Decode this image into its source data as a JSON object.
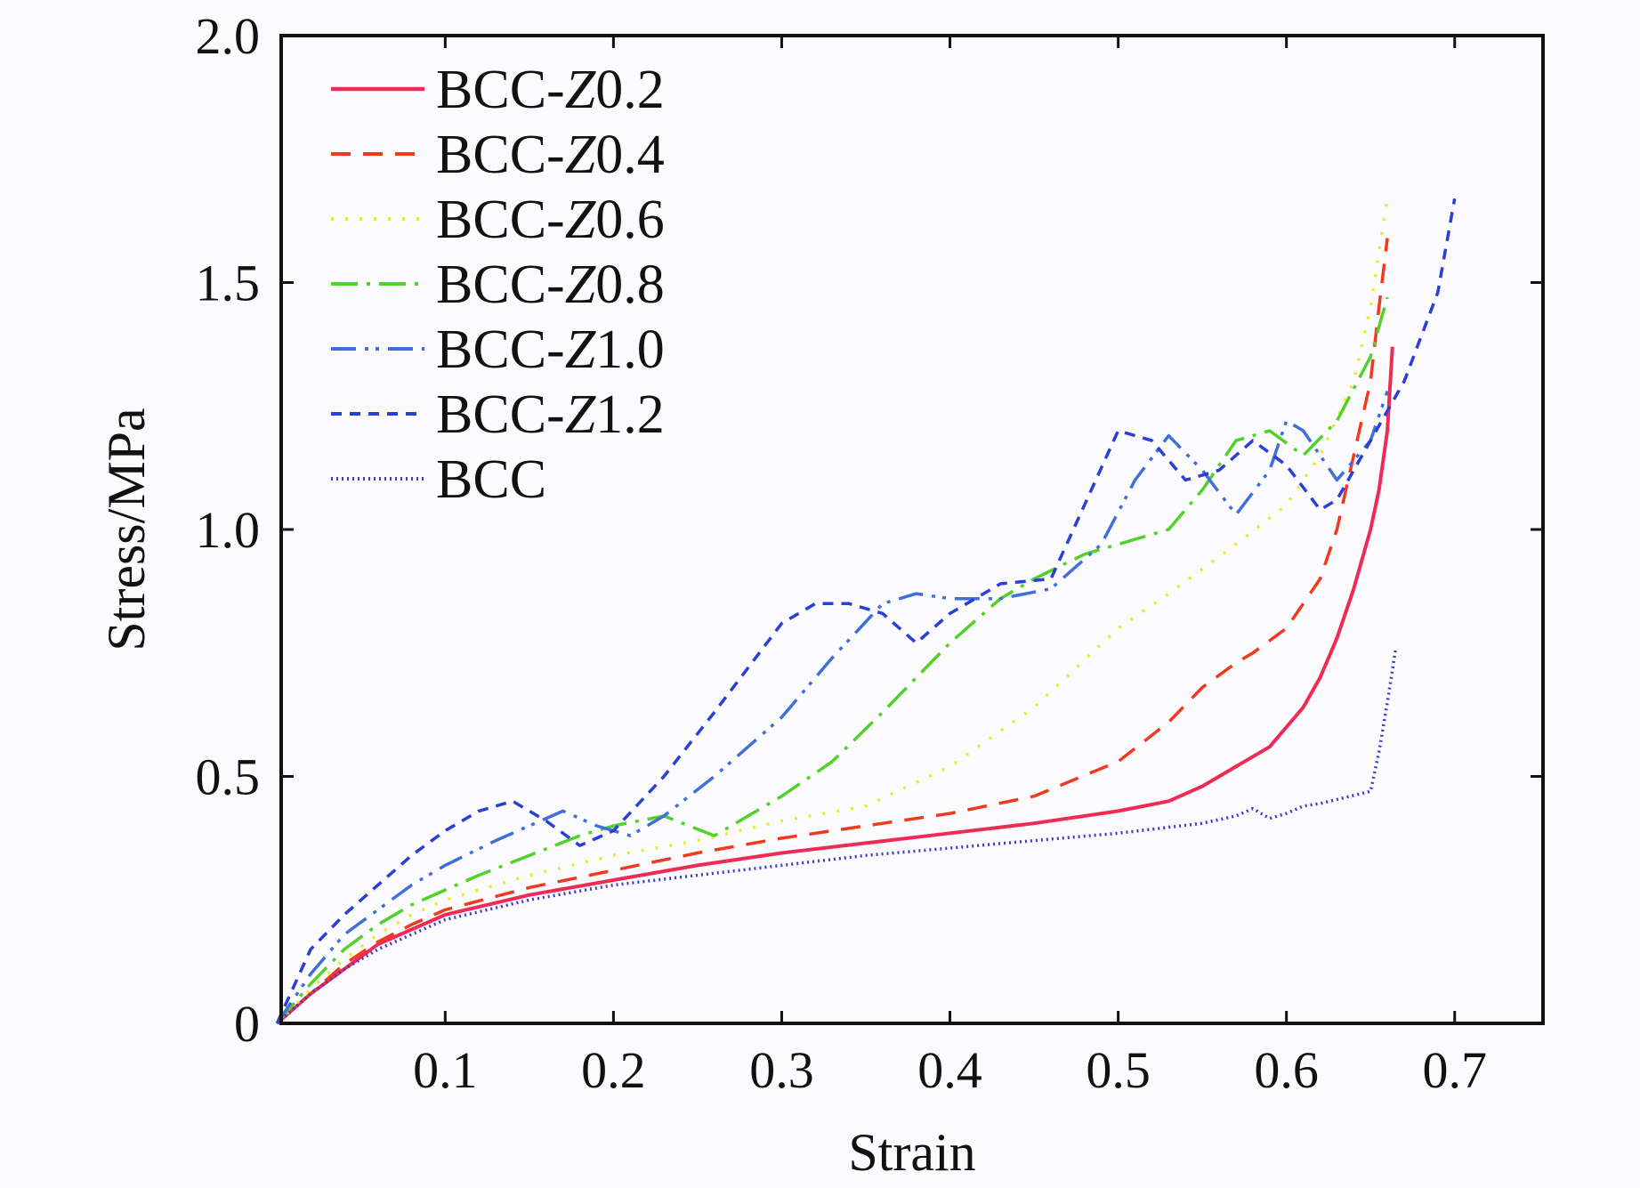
{
  "chart_data": {
    "type": "line",
    "title": "",
    "xlabel": "Strain",
    "ylabel": "Stress/MPa",
    "xlim": [
      0,
      0.75
    ],
    "ylim": [
      0,
      2.0
    ],
    "xticks": [
      0.1,
      0.2,
      0.3,
      0.4,
      0.5,
      0.6,
      0.7
    ],
    "xtick_labels": [
      "0.1",
      "0.2",
      "0.3",
      "0.4",
      "0.5",
      "0.6",
      "0.7"
    ],
    "yticks": [
      0,
      0.5,
      1.0,
      1.5,
      2.0
    ],
    "ytick_labels": [
      "0",
      "0.5",
      "1.0",
      "1.5",
      "2.0"
    ],
    "grid": false,
    "legend_position": "top-left",
    "series": [
      {
        "name": "BCC-Z0.2",
        "prefix": "BCC-",
        "italic": "Z",
        "suffix": "0.2",
        "color": "#ef2b55",
        "dash": "",
        "x": [
          0,
          0.02,
          0.04,
          0.06,
          0.08,
          0.1,
          0.15,
          0.2,
          0.25,
          0.3,
          0.35,
          0.4,
          0.45,
          0.5,
          0.53,
          0.55,
          0.57,
          0.59,
          0.6,
          0.61,
          0.62,
          0.63,
          0.64,
          0.65,
          0.655,
          0.66,
          0.663
        ],
        "y": [
          0,
          0.06,
          0.11,
          0.16,
          0.19,
          0.22,
          0.26,
          0.29,
          0.32,
          0.345,
          0.365,
          0.385,
          0.405,
          0.43,
          0.45,
          0.48,
          0.52,
          0.56,
          0.6,
          0.64,
          0.7,
          0.78,
          0.88,
          1.0,
          1.08,
          1.2,
          1.37
        ]
      },
      {
        "name": "BCC-Z0.4",
        "prefix": "BCC-",
        "italic": "Z",
        "suffix": "0.4",
        "color": "#f03a20",
        "dash": "22,14",
        "x": [
          0,
          0.02,
          0.04,
          0.06,
          0.08,
          0.1,
          0.15,
          0.2,
          0.25,
          0.3,
          0.35,
          0.4,
          0.45,
          0.5,
          0.53,
          0.55,
          0.57,
          0.58,
          0.6,
          0.62,
          0.63,
          0.64,
          0.65,
          0.655,
          0.66
        ],
        "y": [
          0,
          0.06,
          0.12,
          0.165,
          0.2,
          0.23,
          0.275,
          0.31,
          0.345,
          0.375,
          0.4,
          0.425,
          0.46,
          0.53,
          0.61,
          0.68,
          0.73,
          0.75,
          0.8,
          0.9,
          1.0,
          1.15,
          1.3,
          1.45,
          1.59
        ]
      },
      {
        "name": "BCC-Z0.6",
        "prefix": "BCC-",
        "italic": "Z",
        "suffix": "0.6",
        "color": "#f0e830",
        "dash": "3,13",
        "x": [
          0,
          0.02,
          0.04,
          0.06,
          0.08,
          0.1,
          0.15,
          0.2,
          0.25,
          0.3,
          0.35,
          0.4,
          0.45,
          0.5,
          0.53,
          0.55,
          0.57,
          0.6,
          0.62,
          0.64,
          0.65,
          0.66
        ],
        "y": [
          0,
          0.07,
          0.13,
          0.18,
          0.22,
          0.25,
          0.3,
          0.34,
          0.37,
          0.41,
          0.44,
          0.52,
          0.64,
          0.8,
          0.87,
          0.92,
          0.97,
          1.05,
          1.15,
          1.3,
          1.45,
          1.67
        ]
      },
      {
        "name": "BCC-Z0.8",
        "prefix": "BCC-",
        "italic": "Z",
        "suffix": "0.8",
        "color": "#52d12b",
        "dash": "30,10,4,10",
        "x": [
          0,
          0.02,
          0.04,
          0.06,
          0.08,
          0.1,
          0.12,
          0.15,
          0.18,
          0.2,
          0.23,
          0.26,
          0.3,
          0.33,
          0.36,
          0.4,
          0.43,
          0.45,
          0.48,
          0.5,
          0.53,
          0.55,
          0.57,
          0.59,
          0.61,
          0.63,
          0.65,
          0.66
        ],
        "y": [
          0,
          0.08,
          0.15,
          0.2,
          0.24,
          0.27,
          0.3,
          0.34,
          0.38,
          0.4,
          0.42,
          0.38,
          0.46,
          0.53,
          0.63,
          0.77,
          0.86,
          0.9,
          0.95,
          0.97,
          1.0,
          1.08,
          1.18,
          1.2,
          1.15,
          1.22,
          1.35,
          1.47
        ]
      },
      {
        "name": "BCC-Z1.0",
        "prefix": "BCC-",
        "italic": "Z",
        "suffix": "1.0",
        "color": "#3f6fd8",
        "dash": "28,10,4,8,4,10",
        "x": [
          0,
          0.02,
          0.04,
          0.06,
          0.08,
          0.1,
          0.13,
          0.15,
          0.17,
          0.19,
          0.21,
          0.23,
          0.26,
          0.3,
          0.33,
          0.36,
          0.38,
          0.4,
          0.43,
          0.46,
          0.49,
          0.51,
          0.53,
          0.55,
          0.57,
          0.59,
          0.6,
          0.61,
          0.63,
          0.65,
          0.66
        ],
        "y": [
          0,
          0.1,
          0.18,
          0.23,
          0.28,
          0.32,
          0.37,
          0.4,
          0.43,
          0.4,
          0.38,
          0.42,
          0.5,
          0.62,
          0.74,
          0.85,
          0.87,
          0.86,
          0.86,
          0.88,
          0.97,
          1.1,
          1.19,
          1.12,
          1.03,
          1.12,
          1.22,
          1.2,
          1.1,
          1.18,
          1.28
        ]
      },
      {
        "name": "BCC-Z1.2",
        "prefix": "BCC-",
        "italic": "Z",
        "suffix": "1.2",
        "color": "#2a3fd6",
        "dash": "12,9",
        "x": [
          0,
          0.02,
          0.04,
          0.06,
          0.08,
          0.1,
          0.12,
          0.14,
          0.16,
          0.18,
          0.2,
          0.23,
          0.26,
          0.28,
          0.3,
          0.32,
          0.34,
          0.36,
          0.38,
          0.4,
          0.43,
          0.46,
          0.48,
          0.5,
          0.52,
          0.54,
          0.56,
          0.58,
          0.6,
          0.62,
          0.63,
          0.65,
          0.67,
          0.69,
          0.7
        ],
        "y": [
          0,
          0.15,
          0.22,
          0.28,
          0.34,
          0.39,
          0.43,
          0.45,
          0.41,
          0.36,
          0.39,
          0.5,
          0.63,
          0.72,
          0.81,
          0.85,
          0.85,
          0.83,
          0.77,
          0.83,
          0.89,
          0.9,
          1.05,
          1.2,
          1.18,
          1.1,
          1.12,
          1.18,
          1.13,
          1.04,
          1.06,
          1.18,
          1.3,
          1.48,
          1.67
        ]
      },
      {
        "name": "BCC",
        "prefix": "BCC",
        "italic": "",
        "suffix": "",
        "color": "#3b3ccf",
        "dash": "2,4",
        "x": [
          0,
          0.02,
          0.04,
          0.06,
          0.08,
          0.1,
          0.15,
          0.2,
          0.25,
          0.3,
          0.35,
          0.4,
          0.45,
          0.5,
          0.55,
          0.57,
          0.58,
          0.59,
          0.6,
          0.61,
          0.62,
          0.65,
          0.655,
          0.66,
          0.665
        ],
        "y": [
          0,
          0.06,
          0.11,
          0.15,
          0.18,
          0.21,
          0.25,
          0.28,
          0.3,
          0.32,
          0.34,
          0.355,
          0.37,
          0.385,
          0.405,
          0.42,
          0.435,
          0.415,
          0.425,
          0.44,
          0.445,
          0.47,
          0.55,
          0.65,
          0.76
        ]
      }
    ]
  }
}
